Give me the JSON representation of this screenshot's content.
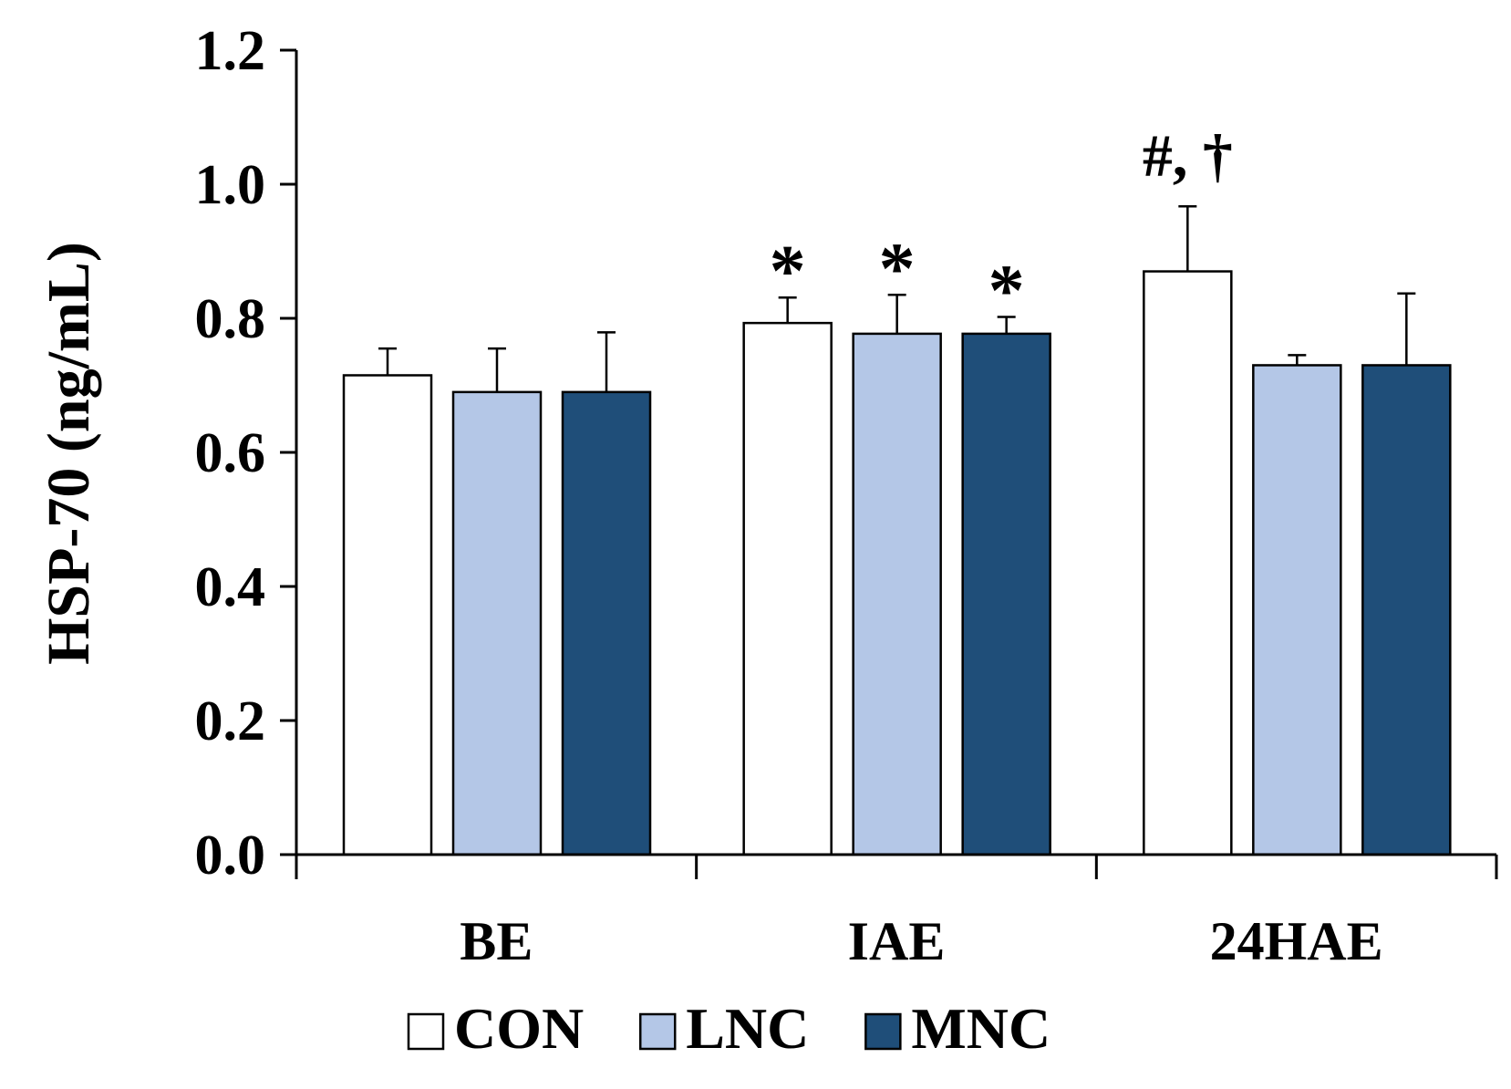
{
  "chart_data": {
    "type": "bar",
    "title": "",
    "xlabel": "",
    "ylabel": "HSP-70 (ng/mL)",
    "ylim": [
      0,
      1.2
    ],
    "yticks": [
      "0.0",
      "0.2",
      "0.4",
      "0.6",
      "0.8",
      "1.0",
      "1.2"
    ],
    "categories": [
      "BE",
      "IAE",
      "24HAE"
    ],
    "series": [
      {
        "name": "CON",
        "color": "#ffffff",
        "values": [
          0.715,
          0.793,
          0.87
        ],
        "errors": [
          0.04,
          0.038,
          0.097
        ]
      },
      {
        "name": "LNC",
        "color": "#b4c7e7",
        "values": [
          0.69,
          0.777,
          0.73
        ],
        "errors": [
          0.065,
          0.058,
          0.015
        ]
      },
      {
        "name": "MNC",
        "color": "#1f4e79",
        "values": [
          0.69,
          0.777,
          0.73
        ],
        "errors": [
          0.089,
          0.025,
          0.107
        ]
      }
    ],
    "legend_position": "bottom",
    "annotations": [
      {
        "category": "IAE",
        "series": "CON",
        "text": "*"
      },
      {
        "category": "IAE",
        "series": "LNC",
        "text": "*"
      },
      {
        "category": "IAE",
        "series": "MNC",
        "text": "*"
      },
      {
        "category": "24HAE",
        "series": "CON",
        "text": "#, †"
      }
    ]
  }
}
